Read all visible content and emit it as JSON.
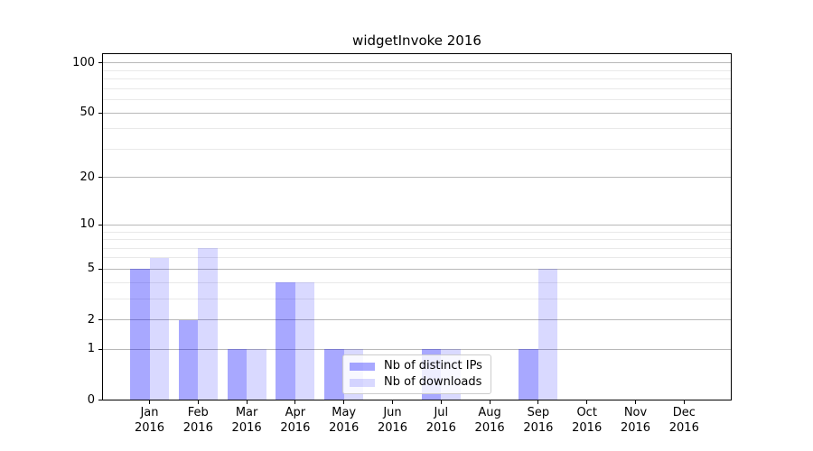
{
  "title": "widgetInvoke 2016",
  "chart_data": {
    "type": "bar",
    "title": "widgetInvoke 2016",
    "categories": [
      "Jan 2016",
      "Feb 2016",
      "Mar 2016",
      "Apr 2016",
      "May 2016",
      "Jun 2016",
      "Jul 2016",
      "Aug 2016",
      "Sep 2016",
      "Oct 2016",
      "Nov 2016",
      "Dec 2016"
    ],
    "month_labels": [
      "Jan",
      "Feb",
      "Mar",
      "Apr",
      "May",
      "Jun",
      "Jul",
      "Aug",
      "Sep",
      "Oct",
      "Nov",
      "Dec"
    ],
    "year_label": "2016",
    "series": [
      {
        "name": "Nb of distinct IPs",
        "color": "rgba(0,0,255,0.34)",
        "values": [
          5,
          2,
          1,
          4,
          1,
          0,
          1,
          0,
          1,
          0,
          0,
          0
        ]
      },
      {
        "name": "Nb of downloads",
        "color": "rgba(0,0,255,0.15)",
        "values": [
          6,
          7,
          1,
          4,
          1,
          0,
          1,
          0,
          5,
          0,
          0,
          0
        ]
      }
    ],
    "xlabel": "",
    "ylabel": "",
    "yscale": "log1p",
    "ylim": [
      0,
      113
    ],
    "yticks": [
      0,
      1,
      2,
      5,
      10,
      20,
      50,
      100
    ],
    "yticks_minor": [
      3,
      4,
      6,
      7,
      8,
      9,
      30,
      40,
      60,
      70,
      80,
      90
    ],
    "grid": "both",
    "legend_position": "inside-bottom-center",
    "colors": {
      "grid_major": "#b8b8b8",
      "grid_minor": "#e9e9e9",
      "axis": "#000000",
      "background": "#ffffff"
    }
  }
}
